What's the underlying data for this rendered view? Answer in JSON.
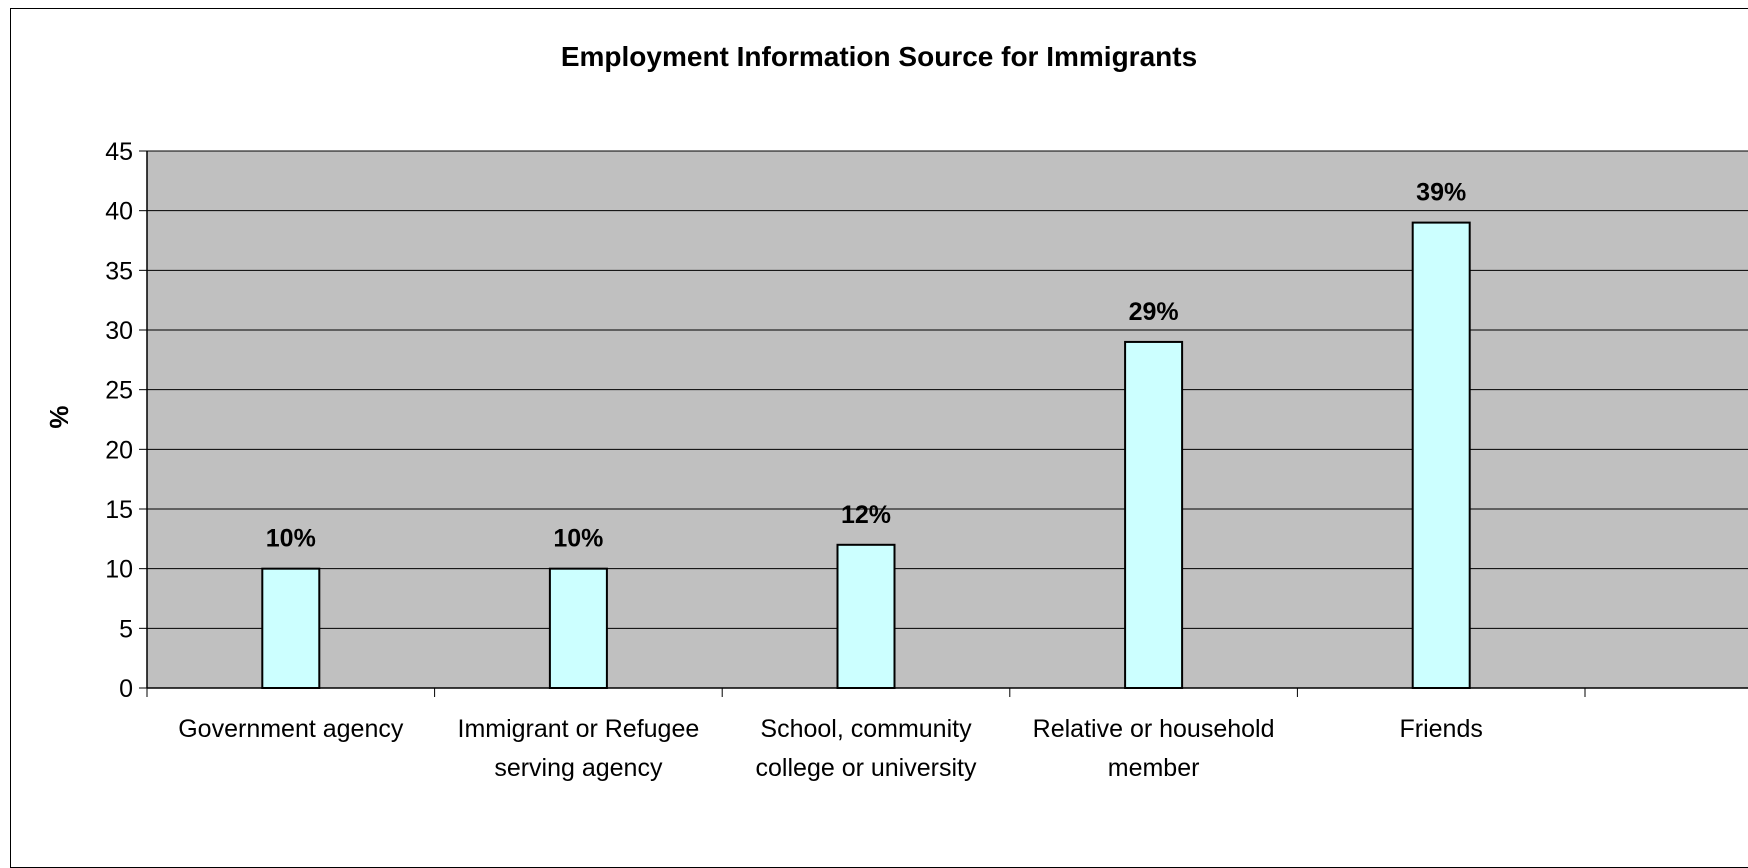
{
  "chart_data": {
    "type": "bar",
    "title": "Employment Information Source for Immigrants",
    "ylabel": "%",
    "xlabel": "",
    "categories": [
      [
        "Government agency"
      ],
      [
        "Immigrant or Refugee",
        "serving agency"
      ],
      [
        "School, community",
        "college or university"
      ],
      [
        "Relative or household",
        "member"
      ],
      [
        "Friends"
      ]
    ],
    "values": [
      10,
      10,
      12,
      29,
      39
    ],
    "data_labels": [
      "10%",
      "10%",
      "12%",
      "29%",
      "39%"
    ],
    "ylim": [
      0,
      45
    ],
    "yticks": [
      0,
      5,
      10,
      15,
      20,
      25,
      30,
      35,
      40,
      45
    ],
    "grid": true,
    "legend": "none",
    "colors": {
      "plot_background": "#c0c0c0",
      "bar_fill": "#ccffff",
      "bar_stroke": "#000000",
      "gridline": "#000000"
    }
  }
}
